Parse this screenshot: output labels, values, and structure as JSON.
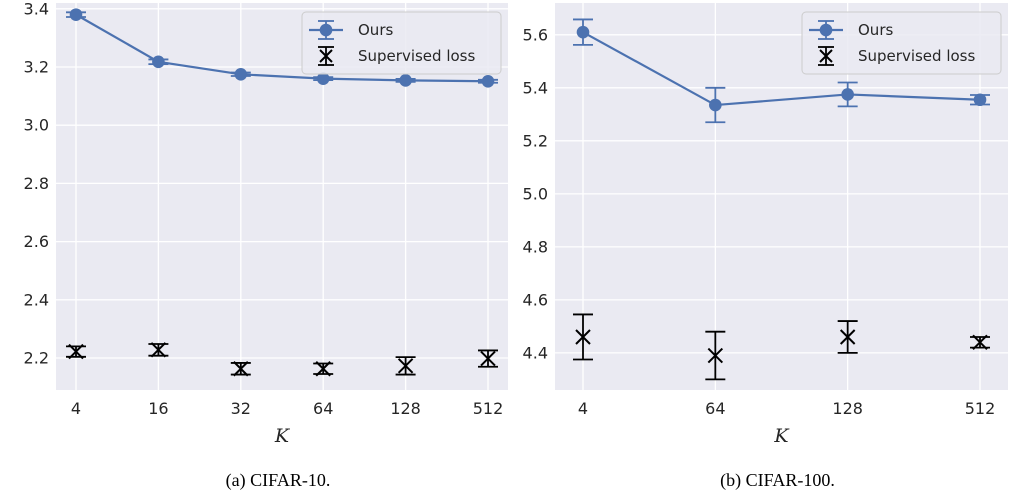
{
  "colors": {
    "ours": "#4c72b0",
    "supervised": "#000000",
    "panel_bg": "#eaeaf2",
    "grid": "#ffffff"
  },
  "chart_data": [
    {
      "type": "line",
      "caption": "(a) CIFAR-10.",
      "xlabel": "K",
      "ylabel": "",
      "categories": [
        "4",
        "16",
        "32",
        "64",
        "128",
        "512"
      ],
      "ylim": [
        2.09,
        3.42
      ],
      "yticks": [
        "2.2",
        "2.4",
        "2.6",
        "2.8",
        "3.0",
        "3.2",
        "3.4"
      ],
      "grid": true,
      "legend_position": "top-right",
      "series": [
        {
          "name": "Ours",
          "style": "line-circle-errorbar",
          "values": [
            3.38,
            3.218,
            3.175,
            3.16,
            3.154,
            3.151
          ],
          "errors": [
            0.008,
            0.008,
            0.006,
            0.005,
            0.005,
            0.005
          ]
        },
        {
          "name": "Supervised loss",
          "style": "x-errorbar",
          "values": [
            2.222,
            2.228,
            2.163,
            2.163,
            2.173,
            2.198
          ],
          "errors": [
            0.018,
            0.02,
            0.02,
            0.018,
            0.03,
            0.028
          ]
        }
      ]
    },
    {
      "type": "line",
      "caption": "(b) CIFAR-100.",
      "xlabel": "K",
      "ylabel": "",
      "categories": [
        "4",
        "64",
        "128",
        "512"
      ],
      "ylim": [
        4.26,
        5.72
      ],
      "yticks": [
        "4.4",
        "4.6",
        "4.8",
        "5.0",
        "5.2",
        "5.4",
        "5.6"
      ],
      "grid": true,
      "legend_position": "top-right",
      "series": [
        {
          "name": "Ours",
          "style": "line-circle-errorbar",
          "values": [
            5.61,
            5.335,
            5.375,
            5.355
          ],
          "errors": [
            0.048,
            0.065,
            0.045,
            0.018
          ]
        },
        {
          "name": "Supervised loss",
          "style": "x-errorbar",
          "values": [
            4.46,
            4.39,
            4.46,
            4.44
          ],
          "errors": [
            0.085,
            0.09,
            0.06,
            0.02
          ]
        }
      ]
    }
  ]
}
